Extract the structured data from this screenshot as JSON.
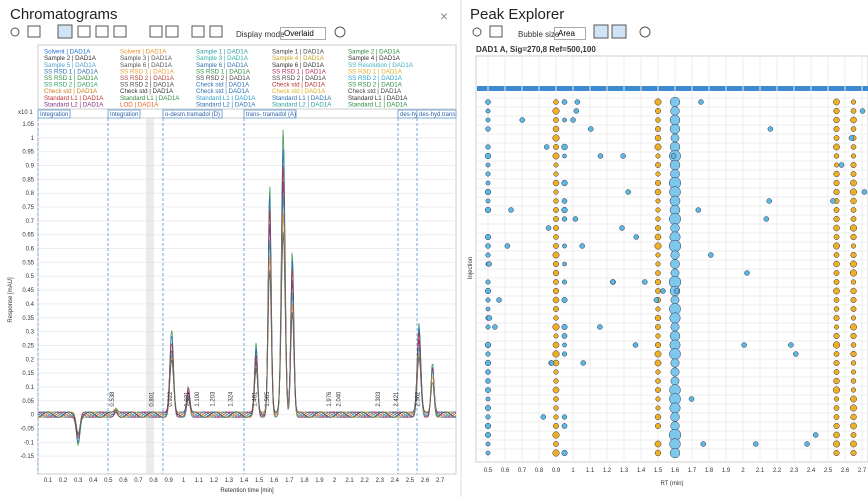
{
  "left": {
    "title": "Chromatograms",
    "display_mode_label": "Display mode",
    "display_mode": "Overlaid",
    "legend": [
      {
        "text": "Solvent | DAD1A",
        "color": "#1f6fd0"
      },
      {
        "text": "Solvent | DAD1A",
        "color": "#e8902a"
      },
      {
        "text": "Sample 1 | DAD1A",
        "color": "#2fa0a0"
      },
      {
        "text": "Sample 1 | DAD1A",
        "color": "#444"
      },
      {
        "text": "Sample 2 | DAD1A",
        "color": "#2e8b3e"
      },
      {
        "text": "Sample 2 | DAD1A",
        "color": "#333"
      },
      {
        "text": "Sample 3 | DAD1A",
        "color": "#555"
      },
      {
        "text": "Sample 3 | DAD1A",
        "color": "#2ab0a8"
      },
      {
        "text": "Sample 4 | DAD1A",
        "color": "#c8a020"
      },
      {
        "text": "Sample 4 | DAD1A",
        "color": "#333"
      },
      {
        "text": "Sample 5 | DAD1A",
        "color": "#4aa0d0"
      },
      {
        "text": "Sample 6 | DAD1A",
        "color": "#555"
      },
      {
        "text": "Sample 6 | DAD1A",
        "color": "#2e6fb0"
      },
      {
        "text": "Sample 6 | DAD1A",
        "color": "#333"
      },
      {
        "text": "SS Resolution | DAD1A",
        "color": "#40b0c0"
      },
      {
        "text": "SS RSD 1 | DAD1A",
        "color": "#2e6fb0"
      },
      {
        "text": "SS RSD 1 | DAD1A",
        "color": "#e8a030"
      },
      {
        "text": "SS RSD 1 | DAD1A",
        "color": "#2e8b3e"
      },
      {
        "text": "SS RSD 1 | DAD1A",
        "color": "#b03050"
      },
      {
        "text": "SS RSD 1 | DAD1A",
        "color": "#e0b020"
      },
      {
        "text": "SS RSD 1 | DAD1A",
        "color": "#2e8b3e"
      },
      {
        "text": "SS RSD 2 | DAD1A",
        "color": "#b04040"
      },
      {
        "text": "SS RSD 2 | DAD1A",
        "color": "#444"
      },
      {
        "text": "SS RSD 2 | DAD1A",
        "color": "#444"
      },
      {
        "text": "SS RSD 2 | DAD1A",
        "color": "#2aa0d0"
      },
      {
        "text": "SS RSD 2 | DAD1A",
        "color": "#2aa060"
      },
      {
        "text": "SS RSD 2 | DAD1A",
        "color": "#444"
      },
      {
        "text": "Check std | DAD1A",
        "color": "#2e6fb0"
      },
      {
        "text": "Check std | DAD1A",
        "color": "#b03030"
      },
      {
        "text": "SS RSD 2 | DAD1A",
        "color": "#2e8b3e"
      },
      {
        "text": "Check std | DAD1A",
        "color": "#d08020"
      },
      {
        "text": "Check std | DAD1A",
        "color": "#333"
      },
      {
        "text": "Check std | DAD1A",
        "color": "#2e6fb0"
      },
      {
        "text": "Check std | DAD1A",
        "color": "#e0b020"
      },
      {
        "text": "Check std | DAD1A",
        "color": "#444"
      },
      {
        "text": "Standard L1 | DAD1A",
        "color": "#c03030"
      },
      {
        "text": "Standard L1 | DAD1A",
        "color": "#2e8b3e"
      },
      {
        "text": "Standard L1 | DAD1A",
        "color": "#2aa0d0"
      },
      {
        "text": "Standard L1 | DAD1A",
        "color": "#2e6fb0"
      },
      {
        "text": "Standard L1 | DAD1A",
        "color": "#333"
      },
      {
        "text": "Standard L2 | DAD1A",
        "color": "#803080"
      },
      {
        "text": "LOD | DAD1A",
        "color": "#e06020"
      },
      {
        "text": "Standard L2 | DAD1A",
        "color": "#2e6fb0"
      },
      {
        "text": "Standard L2 | DAD1A",
        "color": "#2aa0a0"
      },
      {
        "text": "Standard L1 | DAD1A",
        "color": "#2e8b3e"
      }
    ],
    "y_exponent": "x10 1",
    "y_label": "Response [mAU]",
    "x_label": "Retention time [min]",
    "yticks": [
      "1.05",
      "1",
      "0.95",
      "0.9",
      "0.85",
      "0.8",
      "0.75",
      "0.7",
      "0.65",
      "0.6",
      "0.55",
      "0.5",
      "0.45",
      "0.4",
      "0.35",
      "0.3",
      "0.25",
      "0.2",
      "0.15",
      "0.1",
      "0.05",
      "0",
      "-0.05",
      "-0.1",
      "-0.15"
    ],
    "xticks": [
      "0.1",
      "0.2",
      "0.3",
      "0.4",
      "0.5",
      "0.6",
      "0.7",
      "0.8",
      "0.9",
      "1",
      "1.1",
      "1.2",
      "1.3",
      "1.4",
      "1.5",
      "1.6",
      "1.7",
      "1.8",
      "1.9",
      "2",
      "2.1",
      "2.2",
      "2.3",
      "2.4",
      "2.5",
      "2.6",
      "2.7"
    ],
    "bands": [
      "Integration",
      "Integration",
      "o-desm.tramadol (D)",
      "trans- tramadol (A)",
      "des-hyd.cis.tramadol",
      "des-hyd.trans"
    ],
    "peaks": [
      "0.538",
      "0.801",
      "0.922",
      "1.031",
      "1.100",
      "1.203",
      "1.324",
      "1.481",
      "1.565",
      "1.976",
      "2.040",
      "2.303",
      "2.421",
      "2.562"
    ]
  },
  "right": {
    "title": "Peak Explorer",
    "bubble_size_label": "Bubble size",
    "bubble_size": "Area",
    "subtitle": "DAD1 A, Sig=270,8 Ref=500,100",
    "y_label": "Injection",
    "x_label": "RT (min)",
    "xticks": [
      "0.5",
      "0.6",
      "0.7",
      "0.8",
      "0.9",
      "1",
      "1.1",
      "1.2",
      "1.3",
      "1.4",
      "1.5",
      "1.6",
      "1.7",
      "1.8",
      "1.9",
      "2",
      "2.1",
      "2.2",
      "2.3",
      "2.4",
      "2.5",
      "2.6",
      "2.7"
    ]
  }
}
